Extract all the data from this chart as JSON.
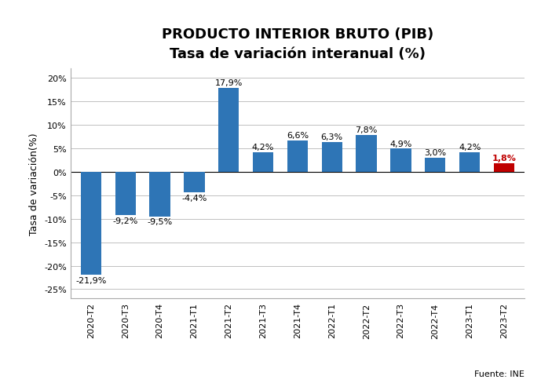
{
  "title_line1": "PRODUCTO INTERIOR BRUTO (PIB)",
  "title_line2": "Tasa de variación interanual (%)",
  "categories": [
    "2020-T2",
    "2020-T3",
    "2020-T4",
    "2021-T1",
    "2021-T2",
    "2021-T3",
    "2021-T4",
    "2022-T1",
    "2022-T2",
    "2022-T3",
    "2022-T4",
    "2023-T1",
    "2023-T2"
  ],
  "values": [
    -21.9,
    -9.2,
    -9.5,
    -4.4,
    17.9,
    4.2,
    6.6,
    6.3,
    7.8,
    4.9,
    3.0,
    4.2,
    1.8
  ],
  "bar_colors": [
    "#2e75b6",
    "#2e75b6",
    "#2e75b6",
    "#2e75b6",
    "#2e75b6",
    "#2e75b6",
    "#2e75b6",
    "#2e75b6",
    "#2e75b6",
    "#2e75b6",
    "#2e75b6",
    "#2e75b6",
    "#c00000"
  ],
  "ylabel": "Tasa de variación(%)",
  "ylim": [
    -27,
    22
  ],
  "yticks": [
    -25,
    -20,
    -15,
    -10,
    -5,
    0,
    5,
    10,
    15,
    20
  ],
  "ytick_labels": [
    "-25%",
    "-20%",
    "-15%",
    "-10%",
    "-5%",
    "0%",
    "5%",
    "10%",
    "15%",
    "20%"
  ],
  "value_labels": [
    "-21,9%",
    "-9,2%",
    "-9,5%",
    "-4,4%",
    "17,9%",
    "4,2%",
    "6,6%",
    "6,3%",
    "7,8%",
    "4,9%",
    "3,0%",
    "4,2%",
    "1,8%"
  ],
  "source_text": "Fuente: INE",
  "title_fontsize": 13,
  "subtitle_fontsize": 11,
  "label_fontsize": 8,
  "background_color": "#ffffff",
  "grid_color": "#c0c0c0",
  "border_color": "#aaaaaa"
}
